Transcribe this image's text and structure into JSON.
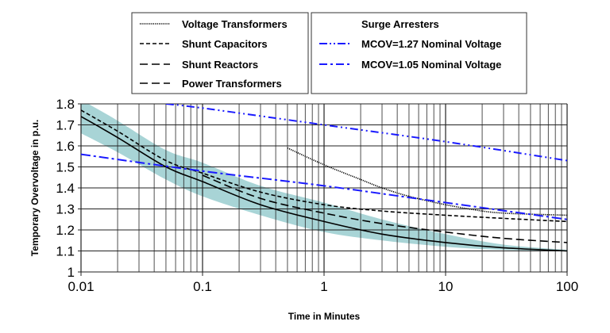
{
  "chart_data": {
    "type": "line",
    "title": "",
    "xlabel": "Time in Minutes",
    "ylabel": "Temporary Overvoltage in p.u.",
    "xscale": "log",
    "xlim": [
      0.01,
      100
    ],
    "ylim": [
      1.0,
      1.8
    ],
    "grid": true,
    "x_ticks": [
      "0.01",
      "0.1",
      "1",
      "10",
      "100"
    ],
    "y_ticks": [
      "1",
      "1.1",
      "1.2",
      "1.3",
      "1.4",
      "1.5",
      "1.6",
      "1.7",
      "1.8"
    ],
    "legend": {
      "placement": "top",
      "equipment_group": [
        "Voltage Transformers",
        "Shunt Capacitors",
        "Shunt Reactors",
        "Power Transformers"
      ],
      "arrester_group_title": "Surge Arresters",
      "arrester_group": [
        "MCOV=1.27 Nominal Voltage",
        "MCOV=1.05 Nominal Voltage"
      ]
    },
    "series": [
      {
        "name": "Voltage Transformers",
        "style": "dotted",
        "color": "#000000",
        "x": [
          0.5,
          1,
          2,
          3,
          5,
          10,
          20,
          30,
          50,
          100
        ],
        "y": [
          1.59,
          1.51,
          1.44,
          1.4,
          1.36,
          1.32,
          1.29,
          1.28,
          1.275,
          1.27
        ]
      },
      {
        "name": "Shunt Capacitors",
        "style": "short-dash",
        "color": "#000000",
        "x": [
          0.01,
          0.02,
          0.05,
          0.1,
          0.3,
          1,
          3,
          10,
          30,
          100
        ],
        "y": [
          1.77,
          1.67,
          1.53,
          1.47,
          1.38,
          1.32,
          1.29,
          1.27,
          1.255,
          1.24
        ]
      },
      {
        "name": "Shunt Reactors",
        "style": "long-dash",
        "color": "#000000",
        "x": [
          0.1,
          0.3,
          1,
          3,
          10,
          30,
          100
        ],
        "y": [
          1.46,
          1.35,
          1.28,
          1.23,
          1.19,
          1.16,
          1.14
        ]
      },
      {
        "name": "Power Transformers",
        "style": "solid",
        "color": "#000000",
        "x": [
          0.01,
          0.02,
          0.05,
          0.1,
          0.3,
          1,
          3,
          10,
          30,
          100
        ],
        "y": [
          1.74,
          1.64,
          1.5,
          1.43,
          1.32,
          1.24,
          1.18,
          1.14,
          1.115,
          1.1
        ]
      },
      {
        "name": "MCOV=1.27 Nominal Voltage",
        "style": "dash-dot-dot",
        "color": "#1a1aff",
        "x": [
          0.05,
          0.1,
          1,
          10,
          100
        ],
        "y": [
          1.8,
          1.78,
          1.7,
          1.62,
          1.53
        ]
      },
      {
        "name": "MCOV=1.05 Nominal Voltage",
        "style": "dash-dot",
        "color": "#1a1aff",
        "x": [
          0.01,
          0.1,
          1,
          10,
          100
        ],
        "y": [
          1.56,
          1.48,
          1.41,
          1.33,
          1.25
        ]
      }
    ],
    "band": {
      "color": "#a8d4d6",
      "x": [
        0.01,
        0.02,
        0.05,
        0.1,
        0.3,
        1,
        3,
        10,
        30,
        100
      ],
      "upper": [
        1.82,
        1.72,
        1.58,
        1.52,
        1.41,
        1.33,
        1.25,
        1.18,
        1.13,
        1.105
      ],
      "lower": [
        1.66,
        1.57,
        1.44,
        1.36,
        1.27,
        1.19,
        1.15,
        1.12,
        1.105,
        1.1
      ]
    }
  }
}
